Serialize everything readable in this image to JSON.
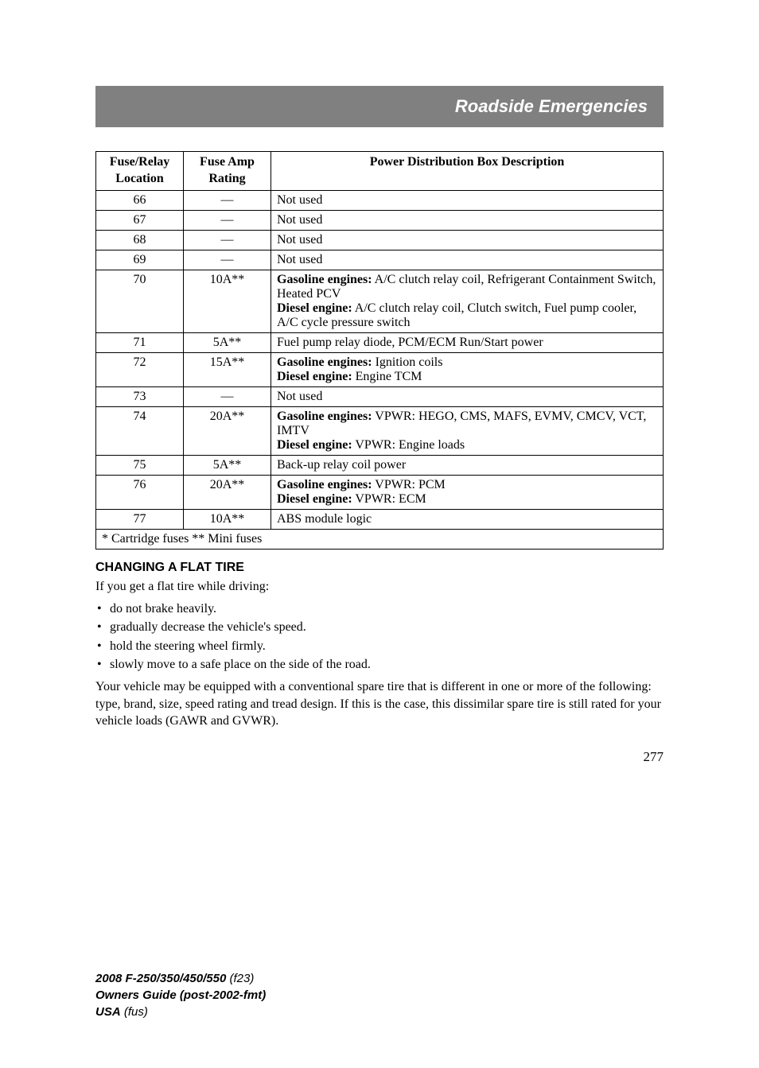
{
  "header": {
    "title": "Roadside Emergencies"
  },
  "table": {
    "columns": [
      "Fuse/Relay Location",
      "Fuse Amp Rating",
      "Power Distribution Box Description"
    ],
    "rows": [
      {
        "loc": "66",
        "amp": "—",
        "desc": [
          {
            "text": "Not used"
          }
        ]
      },
      {
        "loc": "67",
        "amp": "—",
        "desc": [
          {
            "text": "Not used"
          }
        ]
      },
      {
        "loc": "68",
        "amp": "—",
        "desc": [
          {
            "text": "Not used"
          }
        ]
      },
      {
        "loc": "69",
        "amp": "—",
        "desc": [
          {
            "text": "Not used"
          }
        ]
      },
      {
        "loc": "70",
        "amp": "10A**",
        "desc": [
          {
            "bold": "Gasoline engines:",
            "text": " A/C clutch relay coil, Refrigerant Containment Switch, Heated PCV"
          },
          {
            "bold": "Diesel engine:",
            "text": " A/C clutch relay coil, Clutch switch, Fuel pump cooler, A/C cycle pressure switch"
          }
        ]
      },
      {
        "loc": "71",
        "amp": "5A**",
        "desc": [
          {
            "text": "Fuel pump relay diode, PCM/ECM Run/Start power"
          }
        ]
      },
      {
        "loc": "72",
        "amp": "15A**",
        "desc": [
          {
            "bold": "Gasoline engines:",
            "text": " Ignition coils"
          },
          {
            "bold": "Diesel engine:",
            "text": " Engine TCM"
          }
        ]
      },
      {
        "loc": "73",
        "amp": "—",
        "desc": [
          {
            "text": "Not used"
          }
        ]
      },
      {
        "loc": "74",
        "amp": "20A**",
        "desc": [
          {
            "bold": "Gasoline engines:",
            "text": " VPWR: HEGO, CMS, MAFS, EVMV, CMCV, VCT, IMTV"
          },
          {
            "bold": "Diesel engine:",
            "text": " VPWR: Engine loads"
          }
        ]
      },
      {
        "loc": "75",
        "amp": "5A**",
        "desc": [
          {
            "text": "Back-up relay coil power"
          }
        ]
      },
      {
        "loc": "76",
        "amp": "20A**",
        "desc": [
          {
            "bold": "Gasoline engines:",
            "text": " VPWR: PCM"
          },
          {
            "bold": "Diesel engine:",
            "text": " VPWR: ECM"
          }
        ]
      },
      {
        "loc": "77",
        "amp": "10A**",
        "desc": [
          {
            "text": "ABS module logic"
          }
        ]
      }
    ],
    "footnote": "* Cartridge fuses ** Mini fuses"
  },
  "section": {
    "heading": "CHANGING A FLAT TIRE",
    "intro": "If you get a flat tire while driving:",
    "bullets": [
      "do not brake heavily.",
      "gradually decrease the vehicle's speed.",
      "hold the steering wheel firmly.",
      "slowly move to a safe place on the side of the road."
    ],
    "para": "Your vehicle may be equipped with a conventional spare tire that is different in one or more of the following: type, brand, size, speed rating and tread design. If this is the case, this dissimilar spare tire is still rated for your vehicle loads (GAWR and GVWR)."
  },
  "page_number": "277",
  "footer": {
    "line1_bold": "2008 F-250/350/450/550",
    "line1_italic": " (f23)",
    "line2_bold": "Owners Guide (post-2002-fmt)",
    "line3_bold": "USA",
    "line3_italic": " (fus)"
  },
  "style": {
    "header_bg": "#808080",
    "header_fg": "#ffffff",
    "body_font": "Times New Roman",
    "heading_font": "Arial",
    "table_border_color": "#000000",
    "page_bg": "#ffffff",
    "table_font_size": 16,
    "body_font_size": 16,
    "heading_font_size": 16,
    "header_title_size": 22
  }
}
